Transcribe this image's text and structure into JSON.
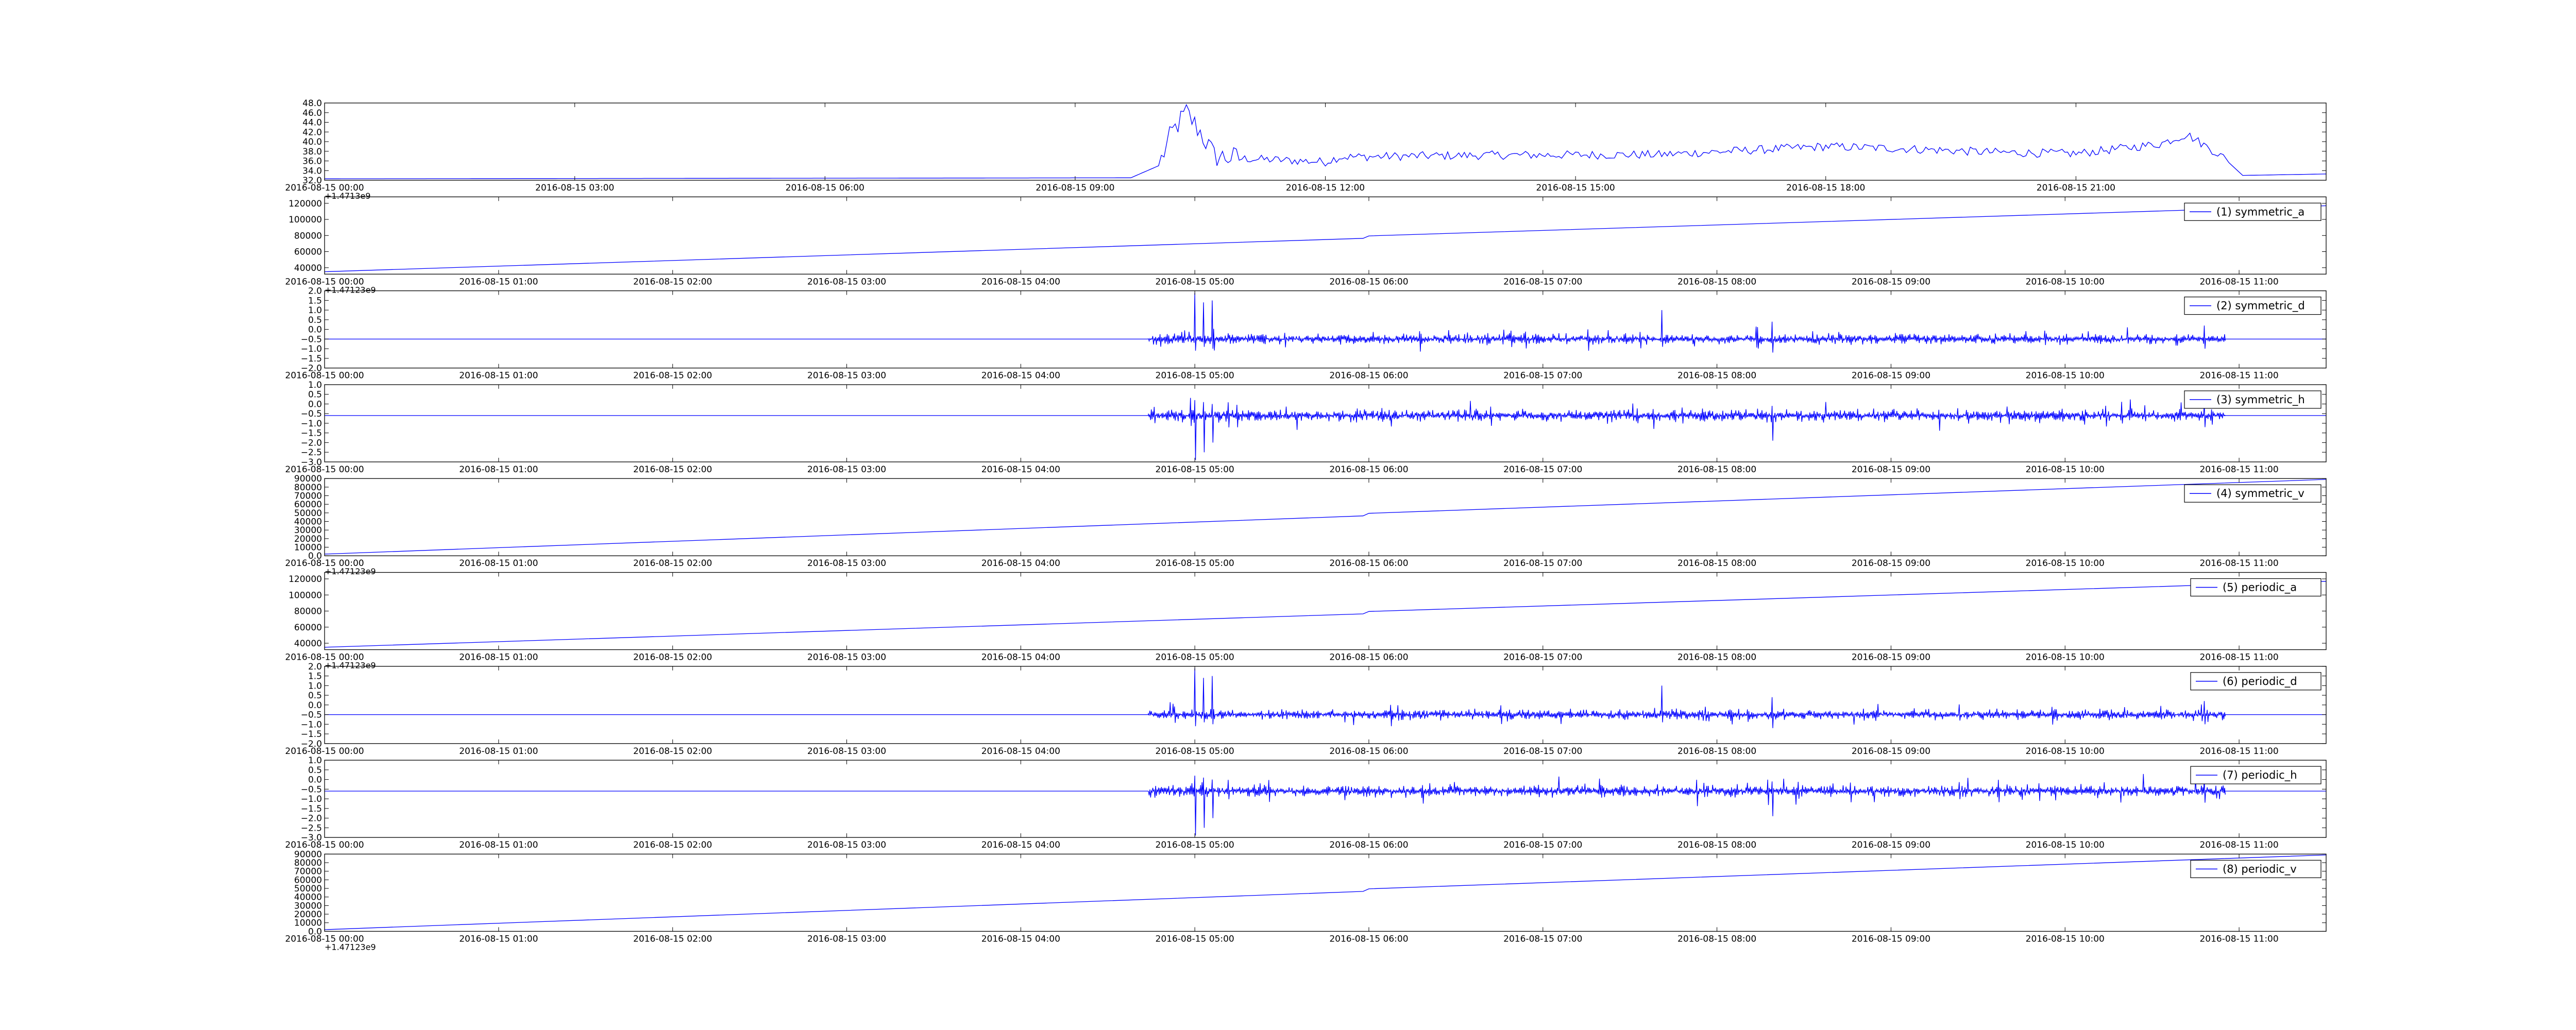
{
  "colors": {
    "line": "#0000ff",
    "axes": "#000000",
    "background": "#ffffff"
  },
  "chart_data": [
    {
      "type": "line",
      "series_name": "",
      "y_ticks": [
        32,
        34,
        36,
        38,
        40,
        42,
        44,
        46,
        48
      ],
      "ylim": [
        32,
        48
      ],
      "x_domain": [
        "2016-08-15 00:00",
        "2016-08-16 00:00"
      ],
      "x_ticks": [
        "2016-08-15 00:00",
        "2016-08-15 03:00",
        "2016-08-15 06:00",
        "2016-08-15 09:00",
        "2016-08-15 12:00",
        "2016-08-15 15:00",
        "2016-08-15 18:00",
        "2016-08-15 21:00"
      ],
      "x_tick_labels": [
        "2016-08-15 00:00",
        "2016-08-15 03:00",
        "2016-08-15 06:00",
        "2016-08-15 09:00",
        "2016-08-15 12:00",
        "2016-08-15 15:00",
        "2016-08-15 18:00",
        "2016-08-15 21:00"
      ],
      "offset_text": "+1.4713e9",
      "points": [
        [
          "2016-08-15 00:00",
          32.3
        ],
        [
          "2016-08-15 09:40",
          32.5
        ],
        [
          "2016-08-15 10:00",
          35
        ],
        [
          "2016-08-15 10:10",
          42
        ],
        [
          "2016-08-15 10:20",
          46
        ],
        [
          "2016-08-15 10:30",
          42
        ],
        [
          "2016-08-15 10:40",
          37
        ],
        [
          "2016-08-15 11:00",
          36.5
        ],
        [
          "2016-08-15 12:00",
          35.8
        ],
        [
          "2016-08-15 12:10",
          36.8
        ],
        [
          "2016-08-15 13:00",
          37
        ],
        [
          "2016-08-15 14:00",
          37.2
        ],
        [
          "2016-08-15 16:00",
          37.3
        ],
        [
          "2016-08-15 18:00",
          39
        ],
        [
          "2016-08-15 19:00",
          38.5
        ],
        [
          "2016-08-15 20:00",
          37.8
        ],
        [
          "2016-08-15 21:00",
          37.5
        ],
        [
          "2016-08-15 22:00",
          39.5
        ],
        [
          "2016-08-15 22:20",
          41.5
        ],
        [
          "2016-08-15 22:45",
          37
        ],
        [
          "2016-08-15 23:00",
          33
        ],
        [
          "2016-08-16 00:00",
          33.3
        ]
      ]
    },
    {
      "type": "line",
      "series_name": "(1) symmetric_a",
      "y_ticks": [
        40000,
        60000,
        80000,
        100000,
        120000
      ],
      "ylim": [
        32000,
        128000
      ],
      "x_domain": [
        "2016-08-15 00:00",
        "2016-08-15 11:30"
      ],
      "x_ticks": [
        "2016-08-15 00:00",
        "2016-08-15 01:00",
        "2016-08-15 02:00",
        "2016-08-15 03:00",
        "2016-08-15 04:00",
        "2016-08-15 05:00",
        "2016-08-15 06:00",
        "2016-08-15 07:00",
        "2016-08-15 08:00",
        "2016-08-15 09:00",
        "2016-08-15 10:00",
        "2016-08-15 11:00"
      ],
      "x_tick_labels": [
        "2016-08-15 00:00",
        "2016-08-15 01:00",
        "2016-08-15 02:00",
        "2016-08-15 03:00",
        "2016-08-15 04:00",
        "2016-08-15 05:00",
        "2016-08-15 06:00",
        "2016-08-15 07:00",
        "2016-08-15 08:00",
        "2016-08-15 09:00",
        "2016-08-15 10:00",
        "2016-08-15 11:00"
      ],
      "offset_text": "+1.47123e9",
      "points": [
        [
          "2016-08-15 00:00",
          35000
        ],
        [
          "2016-08-15 05:58",
          76500
        ],
        [
          "2016-08-15 06:00",
          79500
        ],
        [
          "2016-08-15 11:30",
          117000
        ]
      ]
    },
    {
      "type": "line",
      "series_name": "(2) symmetric_d",
      "y_ticks": [
        -2.0,
        -1.5,
        -1.0,
        -0.5,
        0.0,
        0.5,
        1.0,
        1.5,
        2.0
      ],
      "ylim": [
        -2.0,
        2.0
      ],
      "x_domain": [
        "2016-08-15 00:00",
        "2016-08-15 11:30"
      ],
      "x_ticks": [
        "2016-08-15 00:00",
        "2016-08-15 01:00",
        "2016-08-15 02:00",
        "2016-08-15 03:00",
        "2016-08-15 04:00",
        "2016-08-15 05:00",
        "2016-08-15 06:00",
        "2016-08-15 07:00",
        "2016-08-15 08:00",
        "2016-08-15 09:00",
        "2016-08-15 10:00",
        "2016-08-15 11:00"
      ],
      "x_tick_labels": [
        "2016-08-15 00:00",
        "2016-08-15 01:00",
        "2016-08-15 02:00",
        "2016-08-15 03:00",
        "2016-08-15 04:00",
        "2016-08-15 05:00",
        "2016-08-15 06:00",
        "2016-08-15 07:00",
        "2016-08-15 08:00",
        "2016-08-15 09:00",
        "2016-08-15 10:00",
        "2016-08-15 11:00"
      ],
      "offset_text": "",
      "baseline": -0.5,
      "noise_range": [
        "2016-08-15 04:44",
        "2016-08-15 10:55"
      ],
      "noise_amplitude": 0.25,
      "spikes": [
        [
          "2016-08-15 05:00",
          1.9,
          -1.1
        ],
        [
          "2016-08-15 05:03",
          1.4,
          -0.9
        ],
        [
          "2016-08-15 05:06",
          1.5,
          -1.0
        ],
        [
          "2016-08-15 07:41",
          1.0,
          -0.9
        ],
        [
          "2016-08-15 08:19",
          0.4,
          -1.2
        ],
        [
          "2016-08-15 10:48",
          0.2,
          -1.0
        ]
      ]
    },
    {
      "type": "line",
      "series_name": "(3) symmetric_h",
      "y_ticks": [
        -3.0,
        -2.5,
        -2.0,
        -1.5,
        -1.0,
        -0.5,
        0.0,
        0.5,
        1.0
      ],
      "ylim": [
        -3.0,
        1.0
      ],
      "x_domain": [
        "2016-08-15 00:00",
        "2016-08-15 11:30"
      ],
      "x_ticks": [
        "2016-08-15 00:00",
        "2016-08-15 01:00",
        "2016-08-15 02:00",
        "2016-08-15 03:00",
        "2016-08-15 04:00",
        "2016-08-15 05:00",
        "2016-08-15 06:00",
        "2016-08-15 07:00",
        "2016-08-15 08:00",
        "2016-08-15 09:00",
        "2016-08-15 10:00",
        "2016-08-15 11:00"
      ],
      "x_tick_labels": [
        "2016-08-15 00:00",
        "2016-08-15 01:00",
        "2016-08-15 02:00",
        "2016-08-15 03:00",
        "2016-08-15 04:00",
        "2016-08-15 05:00",
        "2016-08-15 06:00",
        "2016-08-15 07:00",
        "2016-08-15 08:00",
        "2016-08-15 09:00",
        "2016-08-15 10:00",
        "2016-08-15 11:00"
      ],
      "offset_text": "",
      "baseline": -0.6,
      "noise_range": [
        "2016-08-15 04:44",
        "2016-08-15 10:55"
      ],
      "noise_amplitude": 0.3,
      "spikes": [
        [
          "2016-08-15 05:00",
          0.2,
          -2.9
        ],
        [
          "2016-08-15 05:03",
          0.1,
          -2.5
        ],
        [
          "2016-08-15 05:06",
          0.0,
          -2.0
        ],
        [
          "2016-08-15 08:19",
          -0.1,
          -1.9
        ],
        [
          "2016-08-15 10:48",
          0.1,
          -1.2
        ]
      ]
    },
    {
      "type": "line",
      "series_name": "(4) symmetric_v",
      "y_ticks": [
        0,
        10000,
        20000,
        30000,
        40000,
        50000,
        60000,
        70000,
        80000,
        90000
      ],
      "ylim": [
        0,
        90000
      ],
      "x_domain": [
        "2016-08-15 00:00",
        "2016-08-15 11:30"
      ],
      "x_ticks": [
        "2016-08-15 00:00",
        "2016-08-15 01:00",
        "2016-08-15 02:00",
        "2016-08-15 03:00",
        "2016-08-15 04:00",
        "2016-08-15 05:00",
        "2016-08-15 06:00",
        "2016-08-15 07:00",
        "2016-08-15 08:00",
        "2016-08-15 09:00",
        "2016-08-15 10:00",
        "2016-08-15 11:00"
      ],
      "x_tick_labels": [
        "2016-08-15 00:00",
        "2016-08-15 01:00",
        "2016-08-15 02:00",
        "2016-08-15 03:00",
        "2016-08-15 04:00",
        "2016-08-15 05:00",
        "2016-08-15 06:00",
        "2016-08-15 07:00",
        "2016-08-15 08:00",
        "2016-08-15 09:00",
        "2016-08-15 10:00",
        "2016-08-15 11:00"
      ],
      "offset_text": "+1.47123e9",
      "points": [
        [
          "2016-08-15 00:00",
          2000
        ],
        [
          "2016-08-15 05:58",
          46500
        ],
        [
          "2016-08-15 06:00",
          49500
        ],
        [
          "2016-08-15 11:30",
          89000
        ]
      ]
    },
    {
      "type": "line",
      "series_name": "(5) periodic_a",
      "y_ticks": [
        40000,
        60000,
        80000,
        100000,
        120000
      ],
      "ylim": [
        32000,
        128000
      ],
      "x_domain": [
        "2016-08-15 00:00",
        "2016-08-15 11:30"
      ],
      "x_ticks": [
        "2016-08-15 00:00",
        "2016-08-15 01:00",
        "2016-08-15 02:00",
        "2016-08-15 03:00",
        "2016-08-15 04:00",
        "2016-08-15 05:00",
        "2016-08-15 06:00",
        "2016-08-15 07:00",
        "2016-08-15 08:00",
        "2016-08-15 09:00",
        "2016-08-15 10:00",
        "2016-08-15 11:00"
      ],
      "x_tick_labels": [
        "2016-08-15 00:00",
        "2016-08-15 01:00",
        "2016-08-15 02:00",
        "2016-08-15 03:00",
        "2016-08-15 04:00",
        "2016-08-15 05:00",
        "2016-08-15 06:00",
        "2016-08-15 07:00",
        "2016-08-15 08:00",
        "2016-08-15 09:00",
        "2016-08-15 10:00",
        "2016-08-15 11:00"
      ],
      "offset_text": "+1.47123e9",
      "points": [
        [
          "2016-08-15 00:00",
          35000
        ],
        [
          "2016-08-15 05:58",
          76500
        ],
        [
          "2016-08-15 06:00",
          79500
        ],
        [
          "2016-08-15 11:30",
          117000
        ]
      ]
    },
    {
      "type": "line",
      "series_name": "(6) periodic_d",
      "y_ticks": [
        -2.0,
        -1.5,
        -1.0,
        -0.5,
        0.0,
        0.5,
        1.0,
        1.5,
        2.0
      ],
      "ylim": [
        -2.0,
        2.0
      ],
      "x_domain": [
        "2016-08-15 00:00",
        "2016-08-15 11:30"
      ],
      "x_ticks": [
        "2016-08-15 00:00",
        "2016-08-15 01:00",
        "2016-08-15 02:00",
        "2016-08-15 03:00",
        "2016-08-15 04:00",
        "2016-08-15 05:00",
        "2016-08-15 06:00",
        "2016-08-15 07:00",
        "2016-08-15 08:00",
        "2016-08-15 09:00",
        "2016-08-15 10:00",
        "2016-08-15 11:00"
      ],
      "x_tick_labels": [
        "2016-08-15 00:00",
        "2016-08-15 01:00",
        "2016-08-15 02:00",
        "2016-08-15 03:00",
        "2016-08-15 04:00",
        "2016-08-15 05:00",
        "2016-08-15 06:00",
        "2016-08-15 07:00",
        "2016-08-15 08:00",
        "2016-08-15 09:00",
        "2016-08-15 10:00",
        "2016-08-15 11:00"
      ],
      "offset_text": "",
      "baseline": -0.5,
      "noise_range": [
        "2016-08-15 04:44",
        "2016-08-15 10:55"
      ],
      "noise_amplitude": 0.25,
      "spikes": [
        [
          "2016-08-15 05:00",
          1.9,
          -1.1
        ],
        [
          "2016-08-15 05:03",
          1.4,
          -0.9
        ],
        [
          "2016-08-15 05:06",
          1.5,
          -1.0
        ],
        [
          "2016-08-15 07:41",
          1.0,
          -0.9
        ],
        [
          "2016-08-15 08:19",
          0.4,
          -1.2
        ],
        [
          "2016-08-15 10:48",
          0.2,
          -1.0
        ]
      ]
    },
    {
      "type": "line",
      "series_name": "(7) periodic_h",
      "y_ticks": [
        -3.0,
        -2.5,
        -2.0,
        -1.5,
        -1.0,
        -0.5,
        0.0,
        0.5,
        1.0
      ],
      "ylim": [
        -3.0,
        1.0
      ],
      "x_domain": [
        "2016-08-15 00:00",
        "2016-08-15 11:30"
      ],
      "x_ticks": [
        "2016-08-15 00:00",
        "2016-08-15 01:00",
        "2016-08-15 02:00",
        "2016-08-15 03:00",
        "2016-08-15 04:00",
        "2016-08-15 05:00",
        "2016-08-15 06:00",
        "2016-08-15 07:00",
        "2016-08-15 08:00",
        "2016-08-15 09:00",
        "2016-08-15 10:00",
        "2016-08-15 11:00"
      ],
      "x_tick_labels": [
        "2016-08-15 00:00",
        "2016-08-15 01:00",
        "2016-08-15 02:00",
        "2016-08-15 03:00",
        "2016-08-15 04:00",
        "2016-08-15 05:00",
        "2016-08-15 06:00",
        "2016-08-15 07:00",
        "2016-08-15 08:00",
        "2016-08-15 09:00",
        "2016-08-15 10:00",
        "2016-08-15 11:00"
      ],
      "offset_text": "",
      "baseline": -0.6,
      "noise_range": [
        "2016-08-15 04:44",
        "2016-08-15 10:55"
      ],
      "noise_amplitude": 0.3,
      "spikes": [
        [
          "2016-08-15 05:00",
          0.2,
          -2.9
        ],
        [
          "2016-08-15 05:03",
          0.1,
          -2.5
        ],
        [
          "2016-08-15 05:06",
          0.0,
          -2.0
        ],
        [
          "2016-08-15 08:19",
          -0.1,
          -1.9
        ],
        [
          "2016-08-15 10:48",
          0.1,
          -1.2
        ]
      ]
    },
    {
      "type": "line",
      "series_name": "(8) periodic_v",
      "y_ticks": [
        0,
        10000,
        20000,
        30000,
        40000,
        50000,
        60000,
        70000,
        80000,
        90000
      ],
      "ylim": [
        0,
        90000
      ],
      "x_domain": [
        "2016-08-15 00:00",
        "2016-08-15 11:30"
      ],
      "x_ticks": [
        "2016-08-15 00:00",
        "2016-08-15 01:00",
        "2016-08-15 02:00",
        "2016-08-15 03:00",
        "2016-08-15 04:00",
        "2016-08-15 05:00",
        "2016-08-15 06:00",
        "2016-08-15 07:00",
        "2016-08-15 08:00",
        "2016-08-15 09:00",
        "2016-08-15 10:00",
        "2016-08-15 11:00"
      ],
      "x_tick_labels": [
        "2016-08-15 00:00",
        "2016-08-15 01:00",
        "2016-08-15 02:00",
        "2016-08-15 03:00",
        "2016-08-15 04:00",
        "2016-08-15 05:00",
        "2016-08-15 06:00",
        "2016-08-15 07:00",
        "2016-08-15 08:00",
        "2016-08-15 09:00",
        "2016-08-15 10:00",
        "2016-08-15 11:00"
      ],
      "offset_text": "+1.47123e9",
      "points": [
        [
          "2016-08-15 00:00",
          2000
        ],
        [
          "2016-08-15 05:58",
          46500
        ],
        [
          "2016-08-15 06:00",
          49500
        ],
        [
          "2016-08-15 11:30",
          89000
        ]
      ]
    }
  ]
}
